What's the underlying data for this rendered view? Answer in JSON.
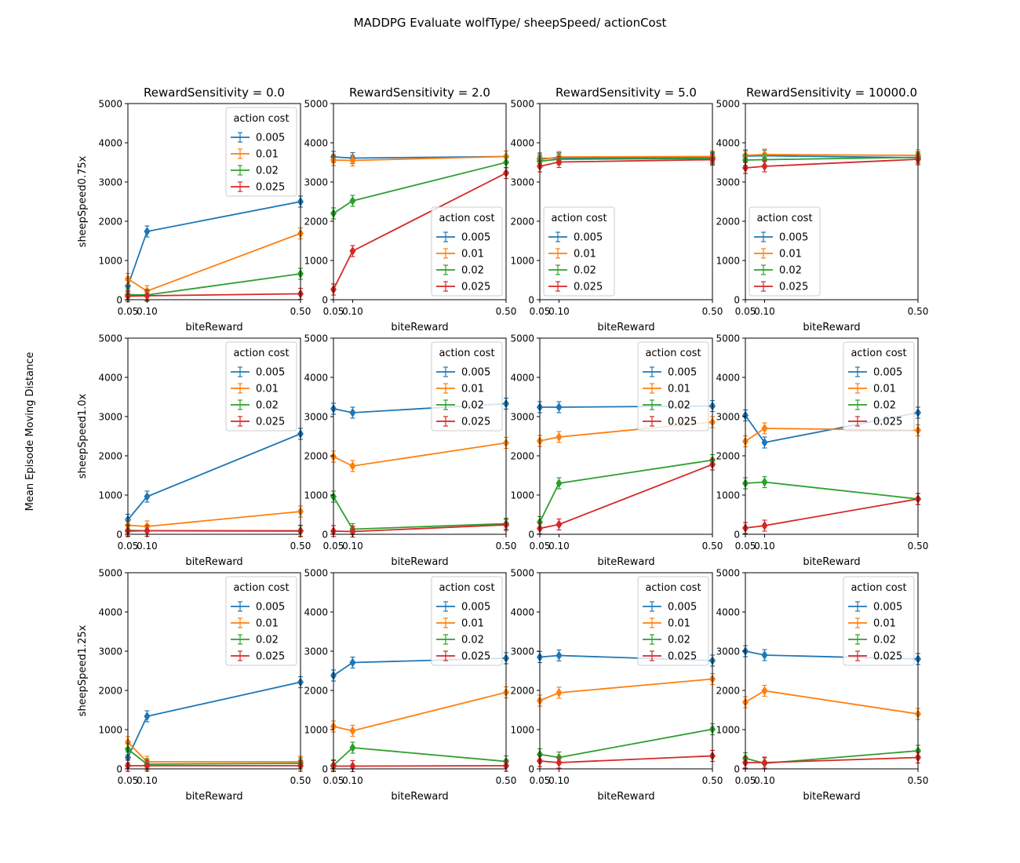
{
  "figure": {
    "suptitle": "MADDPG Evaluate wolfType/ sheepSpeed/ actionCost",
    "ylabel": "Mean Episode Moving Distance"
  },
  "legend": {
    "title": "action cost",
    "labels": [
      "0.005",
      "0.01",
      "0.02",
      "0.025"
    ]
  },
  "colors": [
    "#1f77b4",
    "#ff7f0e",
    "#2ca02c",
    "#d62728"
  ],
  "chart_data": {
    "type": "line",
    "column_titles": [
      "RewardSensitivity = 0.0",
      "RewardSensitivity = 2.0",
      "RewardSensitivity = 5.0",
      "RewardSensitivity = 10000.0"
    ],
    "row_labels": [
      "sheepSpeed0.75x",
      "sheepSpeed1.0x",
      "sheepSpeed1.25x"
    ],
    "xlabel": "biteReward",
    "x": [
      0.05,
      0.1,
      0.5
    ],
    "x_tick_labels": [
      "0.05",
      "0.10",
      "0.50"
    ],
    "xlim": [
      0.05,
      0.5
    ],
    "ylim": [
      0,
      5000
    ],
    "y_ticks": [
      0,
      1000,
      2000,
      3000,
      4000,
      5000
    ],
    "y_tick_labels": [
      "0",
      "1000",
      "2000",
      "3000",
      "4000",
      "5000"
    ],
    "series_names": [
      "0.005",
      "0.01",
      "0.02",
      "0.025"
    ],
    "panels": [
      [
        {
          "values": [
            [
              350,
              1740,
              2500
            ],
            [
              530,
              220,
              1690
            ],
            [
              130,
              120,
              660
            ],
            [
              90,
              100,
              150
            ]
          ],
          "legend_loc": "upper right"
        },
        {
          "values": [
            [
              3640,
              3610,
              3650
            ],
            [
              3560,
              3550,
              3650
            ],
            [
              2200,
              2520,
              3500
            ],
            [
              260,
              1240,
              3230
            ]
          ],
          "legend_loc": "lower right"
        },
        {
          "values": [
            [
              3600,
              3610,
              3620
            ],
            [
              3570,
              3640,
              3650
            ],
            [
              3530,
              3580,
              3600
            ],
            [
              3400,
              3510,
              3570
            ]
          ],
          "legend_loc": "lower left"
        },
        {
          "values": [
            [
              3660,
              3670,
              3620
            ],
            [
              3680,
              3700,
              3680
            ],
            [
              3560,
              3570,
              3630
            ],
            [
              3360,
              3400,
              3580
            ]
          ],
          "legend_loc": "lower left"
        }
      ],
      [
        {
          "values": [
            [
              370,
              960,
              2560
            ],
            [
              230,
              200,
              580
            ],
            [
              100,
              90,
              80
            ],
            [
              80,
              90,
              90
            ]
          ],
          "legend_loc": "upper right"
        },
        {
          "values": [
            [
              3200,
              3100,
              3330
            ],
            [
              1980,
              1740,
              2330
            ],
            [
              960,
              130,
              270
            ],
            [
              80,
              70,
              240
            ]
          ],
          "legend_loc": "upper right"
        },
        {
          "values": [
            [
              3240,
              3240,
              3270
            ],
            [
              2380,
              2480,
              2860
            ],
            [
              310,
              1300,
              1890
            ],
            [
              150,
              250,
              1780
            ]
          ],
          "legend_loc": "upper right"
        },
        {
          "values": [
            [
              3030,
              2340,
              3100
            ],
            [
              2370,
              2700,
              2650
            ],
            [
              1300,
              1330,
              900
            ],
            [
              160,
              220,
              900
            ]
          ],
          "legend_loc": "upper right"
        }
      ],
      [
        {
          "values": [
            [
              290,
              1340,
              2210
            ],
            [
              680,
              180,
              180
            ],
            [
              500,
              120,
              140
            ],
            [
              80,
              80,
              80
            ]
          ],
          "legend_loc": "upper right"
        },
        {
          "values": [
            [
              2380,
              2710,
              2820
            ],
            [
              1080,
              970,
              1950
            ],
            [
              90,
              540,
              190
            ],
            [
              70,
              70,
              80
            ]
          ],
          "legend_loc": "upper right"
        },
        {
          "values": [
            [
              2850,
              2890,
              2760
            ],
            [
              1740,
              1940,
              2290
            ],
            [
              370,
              290,
              1010
            ],
            [
              200,
              160,
              330
            ]
          ],
          "legend_loc": "upper right"
        },
        {
          "values": [
            [
              3000,
              2900,
              2800
            ],
            [
              1700,
              1990,
              1400
            ],
            [
              270,
              140,
              460
            ],
            [
              160,
              160,
              290
            ]
          ],
          "legend_loc": "upper right"
        }
      ]
    ]
  }
}
